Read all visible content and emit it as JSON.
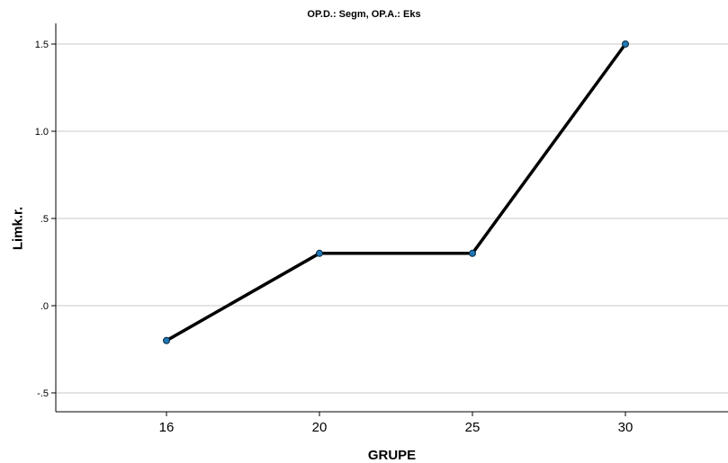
{
  "chart_data": {
    "type": "line",
    "title": "OP.D.: Segm, OP.A.: Eks",
    "xlabel": "GRUPE",
    "ylabel": "Limk.r.",
    "categories": [
      "16",
      "20",
      "25",
      "30"
    ],
    "series": [
      {
        "values": [
          -0.2,
          0.3,
          0.3,
          1.5
        ]
      }
    ],
    "ylim": [
      -0.6,
      1.6
    ],
    "yticks": [
      -0.5,
      0.0,
      0.5,
      1.0,
      1.5
    ],
    "ytick_labels": [
      "-.5",
      ".0",
      ".5",
      "1.0",
      "1.5"
    ],
    "grid": "horizontal",
    "line_color": "#000000",
    "marker_color": "#1f77b4"
  }
}
